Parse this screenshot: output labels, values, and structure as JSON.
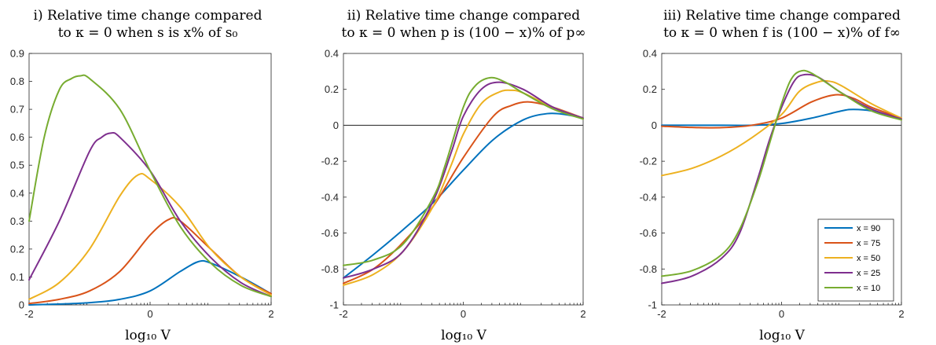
{
  "colors": [
    "#0072BD",
    "#D95319",
    "#EDB120",
    "#7E2F8E",
    "#77AC30"
  ],
  "legend": [
    "x = 90",
    "x = 75",
    "x = 50",
    "x = 25",
    "x = 10"
  ],
  "chart_data": [
    {
      "type": "line",
      "title_line1": "i) Relative time change compared",
      "title_line2": "to κ = 0 when s is x% of s₀",
      "xlabel": "log₁₀ V",
      "xlim": [
        -2,
        2
      ],
      "ylim": [
        0,
        0.9
      ],
      "xticks": [
        "-2",
        "0",
        "2"
      ],
      "yticks": [
        "0",
        "0.1",
        "0.2",
        "0.3",
        "0.4",
        "0.5",
        "0.6",
        "0.7",
        "0.8",
        "0.9"
      ],
      "zero_line": false,
      "series": [
        {
          "name": "x = 90",
          "x": [
            -2,
            -1.5,
            -1,
            -0.5,
            0,
            0.5,
            0.8,
            1,
            1.5,
            2
          ],
          "y": [
            0,
            0.003,
            0.008,
            0.02,
            0.05,
            0.12,
            0.155,
            0.15,
            0.1,
            0.04
          ]
        },
        {
          "name": "x = 75",
          "x": [
            -2,
            -1.5,
            -1,
            -0.5,
            0,
            0.3,
            0.5,
            1,
            1.5,
            2
          ],
          "y": [
            0.005,
            0.02,
            0.05,
            0.12,
            0.25,
            0.305,
            0.3,
            0.2,
            0.1,
            0.04
          ]
        },
        {
          "name": "x = 50",
          "x": [
            -2,
            -1.5,
            -1,
            -0.5,
            -0.2,
            0,
            0.5,
            1,
            1.5,
            2
          ],
          "y": [
            0.02,
            0.08,
            0.2,
            0.39,
            0.465,
            0.45,
            0.35,
            0.2,
            0.1,
            0.035
          ]
        },
        {
          "name": "x = 25",
          "x": [
            -2,
            -1.5,
            -1,
            -0.8,
            -0.65,
            -0.5,
            0,
            0.5,
            1,
            1.5,
            2
          ],
          "y": [
            0.09,
            0.3,
            0.55,
            0.6,
            0.615,
            0.6,
            0.48,
            0.3,
            0.17,
            0.08,
            0.03
          ]
        },
        {
          "name": "x = 10",
          "x": [
            -2,
            -1.75,
            -1.5,
            -1.3,
            -1.15,
            -1,
            -0.5,
            0,
            0.5,
            1,
            1.5,
            2
          ],
          "y": [
            0.3,
            0.6,
            0.77,
            0.81,
            0.82,
            0.81,
            0.7,
            0.48,
            0.28,
            0.15,
            0.07,
            0.03
          ]
        }
      ]
    },
    {
      "type": "line",
      "title_line1": "ii) Relative time change compared",
      "title_line2": "to κ = 0 when p is (100 − x)% of p∞",
      "xlabel": "log₁₀ V",
      "xlim": [
        -2,
        2
      ],
      "ylim": [
        -1,
        0.4
      ],
      "xticks": [
        "-2",
        "0",
        "2"
      ],
      "yticks": [
        "-1",
        "-0.8",
        "-0.6",
        "-0.4",
        "-0.2",
        "0",
        "0.2",
        "0.4"
      ],
      "zero_line": true,
      "series": [
        {
          "name": "x = 90",
          "x": [
            -2,
            -1.5,
            -1,
            -0.5,
            0,
            0.5,
            1,
            1.4,
            1.7,
            2
          ],
          "y": [
            -0.85,
            -0.72,
            -0.58,
            -0.43,
            -0.25,
            -0.08,
            0.03,
            0.065,
            0.06,
            0.04
          ]
        },
        {
          "name": "x = 75",
          "x": [
            -2,
            -1.5,
            -1,
            -0.5,
            0,
            0.5,
            0.8,
            1.1,
            1.5,
            2
          ],
          "y": [
            -0.88,
            -0.8,
            -0.65,
            -0.45,
            -0.18,
            0.05,
            0.11,
            0.13,
            0.1,
            0.04
          ]
        },
        {
          "name": "x = 50",
          "x": [
            -2,
            -1.5,
            -1,
            -0.5,
            -0.2,
            0,
            0.3,
            0.6,
            0.8,
            1,
            1.5,
            2
          ],
          "y": [
            -0.89,
            -0.83,
            -0.7,
            -0.45,
            -0.22,
            -0.05,
            0.12,
            0.185,
            0.195,
            0.18,
            0.1,
            0.04
          ]
        },
        {
          "name": "x = 25",
          "x": [
            -2,
            -1.5,
            -1,
            -0.5,
            -0.2,
            0,
            0.3,
            0.6,
            1,
            1.5,
            2
          ],
          "y": [
            -0.85,
            -0.8,
            -0.7,
            -0.42,
            -0.15,
            0.05,
            0.2,
            0.24,
            0.2,
            0.1,
            0.04
          ]
        },
        {
          "name": "x = 10",
          "x": [
            -2,
            -1.5,
            -1,
            -0.5,
            -0.3,
            0,
            0.2,
            0.45,
            0.7,
            1,
            1.5,
            2
          ],
          "y": [
            -0.78,
            -0.75,
            -0.66,
            -0.4,
            -0.22,
            0.1,
            0.22,
            0.265,
            0.24,
            0.18,
            0.09,
            0.035
          ]
        }
      ]
    },
    {
      "type": "line",
      "title_line1": "iii) Relative time change compared",
      "title_line2": "to κ = 0 when f is (100 − x)% of f∞",
      "xlabel": "log₁₀ V",
      "xlim": [
        -2,
        2
      ],
      "ylim": [
        -1,
        0.4
      ],
      "xticks": [
        "-2",
        "0",
        "2"
      ],
      "yticks": [
        "-1",
        "-0.8",
        "-0.6",
        "-0.4",
        "-0.2",
        "0",
        "0.2",
        "0.4"
      ],
      "zero_line": true,
      "series": [
        {
          "name": "x = 90",
          "x": [
            -2,
            -1,
            -0.5,
            0,
            0.5,
            1,
            1.2,
            1.5,
            2
          ],
          "y": [
            0,
            0,
            0,
            0.01,
            0.04,
            0.08,
            0.088,
            0.08,
            0.04
          ]
        },
        {
          "name": "x = 75",
          "x": [
            -2,
            -1.5,
            -1,
            -0.5,
            0,
            0.5,
            0.9,
            1.2,
            1.5,
            2
          ],
          "y": [
            -0.005,
            -0.012,
            -0.013,
            0,
            0.04,
            0.13,
            0.17,
            0.15,
            0.1,
            0.04
          ]
        },
        {
          "name": "x = 50",
          "x": [
            -2,
            -1.5,
            -1,
            -0.5,
            0,
            0.3,
            0.6,
            0.8,
            1,
            1.5,
            2
          ],
          "y": [
            -0.28,
            -0.24,
            -0.17,
            -0.07,
            0.06,
            0.19,
            0.24,
            0.245,
            0.22,
            0.12,
            0.04
          ]
        },
        {
          "name": "x = 25",
          "x": [
            -2,
            -1.5,
            -1,
            -0.7,
            -0.4,
            -0.2,
            0,
            0.2,
            0.35,
            0.6,
            1,
            1.5,
            2
          ],
          "y": [
            -0.88,
            -0.84,
            -0.74,
            -0.6,
            -0.3,
            -0.08,
            0.1,
            0.24,
            0.28,
            0.27,
            0.18,
            0.09,
            0.035
          ]
        },
        {
          "name": "x = 10",
          "x": [
            -2,
            -1.5,
            -1,
            -0.7,
            -0.4,
            -0.2,
            0,
            0.15,
            0.3,
            0.5,
            1,
            1.5,
            2
          ],
          "y": [
            -0.84,
            -0.81,
            -0.72,
            -0.58,
            -0.32,
            -0.1,
            0.12,
            0.25,
            0.3,
            0.29,
            0.18,
            0.08,
            0.03
          ]
        }
      ]
    }
  ]
}
